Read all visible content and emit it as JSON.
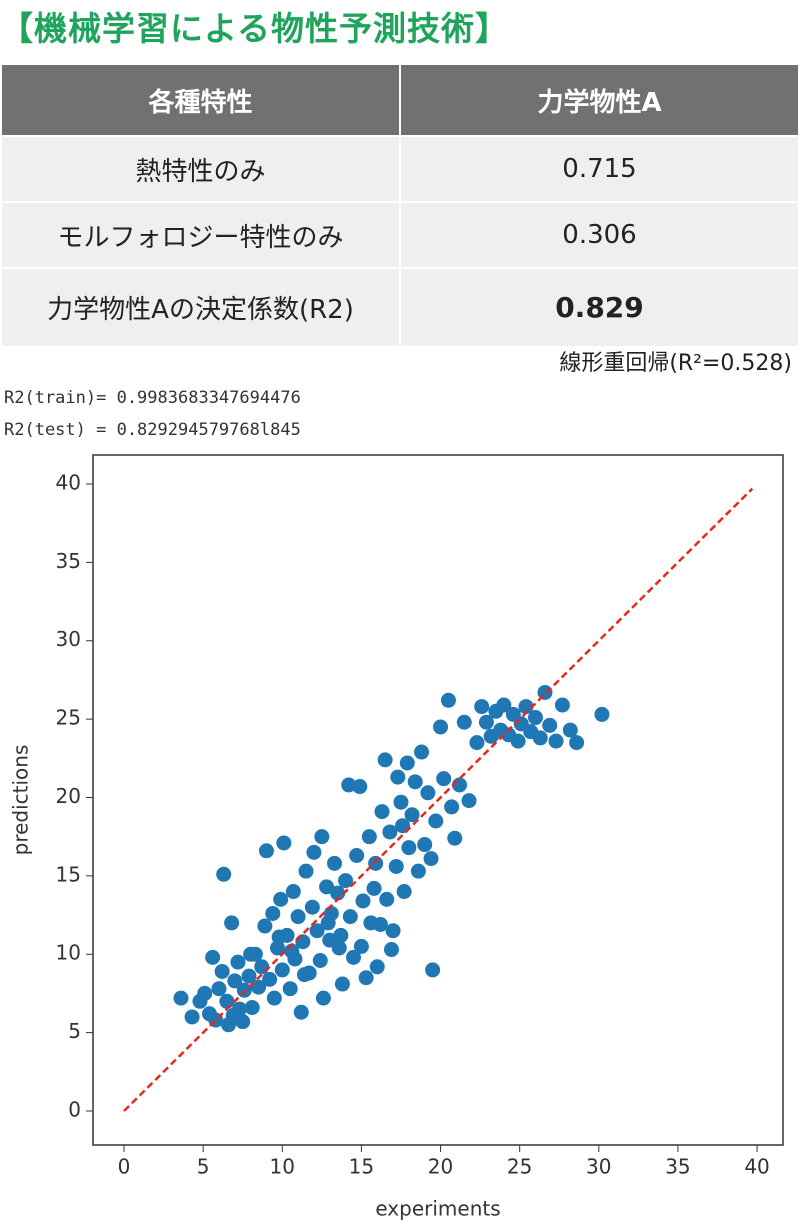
{
  "header": {
    "title": "【機械学習による物性予測技術】"
  },
  "table": {
    "headers": [
      "各種特性",
      "力学物性A"
    ],
    "rows": [
      [
        "熱特性のみ",
        "0.715"
      ],
      [
        "モルフォロジー特性のみ",
        "0.306"
      ],
      [
        "力学物性Aの決定係数(R2)",
        "0.829"
      ]
    ]
  },
  "note": "線形重回帰(R²=0.528)",
  "code_output": [
    "R2(train)= 0.9983683347694476",
    "R2(test) = 0.829294579768l845"
  ],
  "chart_data": {
    "type": "scatter",
    "xlabel": "experiments",
    "ylabel": "predictions",
    "xlim": [
      -1.96,
      41.64
    ],
    "ylim": [
      -2.17,
      41.85
    ],
    "xticks": [
      0,
      5,
      10,
      15,
      20,
      25,
      30,
      35,
      40
    ],
    "yticks": [
      0,
      5,
      10,
      15,
      20,
      25,
      30,
      35,
      40
    ],
    "series": [
      {
        "type": "scatter",
        "color": "#1f77b4",
        "x": [
          3.6,
          4.3,
          5.1,
          5.4,
          5.6,
          6.0,
          6.2,
          6.3,
          6.5,
          6.8,
          6.9,
          7.0,
          7.2,
          7.5,
          7.6,
          7.9,
          8.1,
          8.3,
          8.5,
          8.7,
          8.9,
          9.0,
          9.2,
          9.4,
          9.5,
          9.7,
          9.9,
          10.0,
          10.1,
          10.3,
          10.5,
          10.7,
          10.8,
          11.0,
          11.2,
          11.3,
          11.5,
          11.7,
          11.9,
          12.0,
          12.2,
          12.4,
          12.5,
          12.6,
          12.8,
          13.0,
          13.1,
          13.3,
          13.5,
          13.7,
          13.8,
          14.0,
          14.2,
          14.3,
          14.5,
          14.7,
          14.9,
          15.0,
          15.1,
          15.3,
          15.5,
          15.6,
          15.8,
          16.0,
          16.2,
          16.3,
          16.5,
          16.6,
          16.8,
          17.0,
          17.2,
          17.3,
          17.5,
          17.7,
          17.9,
          18.0,
          18.2,
          18.4,
          18.6,
          18.8,
          19.0,
          19.2,
          19.4,
          19.5,
          19.7,
          20.0,
          20.2,
          20.5,
          20.7,
          20.9,
          21.2,
          21.5,
          21.8,
          22.3,
          22.6,
          22.9,
          23.2,
          23.5,
          23.8,
          24.0,
          24.3,
          24.6,
          24.9,
          25.1,
          25.4,
          25.7,
          26.0,
          26.3,
          26.6,
          26.9,
          27.3,
          27.7,
          28.2,
          28.6,
          30.2,
          4.8,
          5.8,
          6.6,
          7.3,
          8.0,
          9.8,
          10.6,
          11.4,
          12.9,
          13.6,
          15.9,
          16.9,
          17.6
        ],
        "values": [
          7.2,
          6.0,
          7.5,
          6.2,
          9.8,
          7.8,
          8.9,
          15.1,
          7.0,
          12.0,
          6.1,
          8.3,
          9.5,
          5.7,
          7.7,
          8.6,
          6.6,
          10.0,
          7.9,
          9.2,
          11.8,
          16.6,
          8.4,
          12.6,
          7.2,
          10.4,
          13.5,
          9.0,
          17.1,
          11.2,
          7.8,
          14.0,
          9.7,
          12.4,
          6.3,
          10.8,
          15.3,
          8.8,
          13.0,
          16.5,
          11.5,
          9.6,
          17.5,
          7.2,
          14.3,
          10.9,
          12.6,
          15.8,
          13.9,
          11.2,
          8.1,
          14.7,
          20.8,
          12.4,
          9.8,
          16.3,
          20.7,
          10.5,
          13.4,
          8.5,
          17.5,
          12.0,
          14.2,
          9.2,
          11.9,
          19.1,
          22.4,
          13.5,
          17.8,
          11.5,
          15.6,
          21.3,
          19.7,
          14.0,
          22.2,
          16.8,
          18.9,
          21.0,
          15.3,
          22.9,
          17.0,
          20.3,
          16.1,
          9.0,
          18.5,
          24.5,
          21.2,
          26.2,
          19.4,
          17.4,
          20.8,
          24.8,
          19.8,
          23.5,
          25.8,
          24.8,
          23.9,
          25.5,
          24.3,
          25.9,
          24.0,
          25.3,
          23.6,
          24.7,
          25.8,
          24.2,
          25.1,
          23.8,
          26.7,
          24.6,
          23.6,
          25.9,
          24.3,
          23.5,
          25.3,
          7.0,
          5.8,
          5.5,
          6.5,
          10.0,
          11.1,
          10.2,
          8.7,
          12.0,
          10.4,
          15.8,
          10.3,
          18.2
        ]
      },
      {
        "type": "line",
        "color": "#e8271f",
        "dashed": true,
        "x": [
          0,
          39.7
        ],
        "values": [
          0,
          39.7
        ]
      }
    ]
  }
}
